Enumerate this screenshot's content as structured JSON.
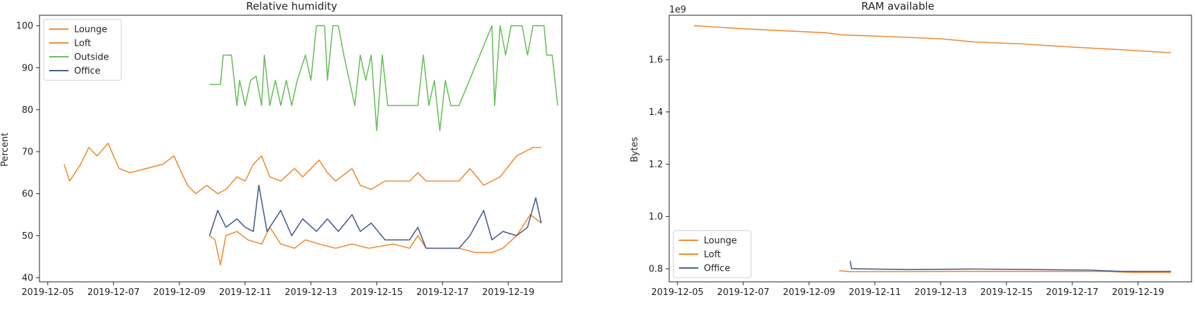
{
  "chart_data": [
    {
      "type": "line",
      "title": "Relative humidity",
      "xlabel": "",
      "ylabel": "Percent",
      "xlim": [
        "2019-12-04T18:00",
        "2019-12-20T15:00"
      ],
      "ylim": [
        39,
        102.5
      ],
      "xticks": [
        "2019-12-05",
        "2019-12-07",
        "2019-12-09",
        "2019-12-11",
        "2019-12-13",
        "2019-12-15",
        "2019-12-17",
        "2019-12-19"
      ],
      "yticks": [
        40,
        50,
        60,
        70,
        80,
        90,
        100
      ],
      "grid": false,
      "legend_position": "top-left",
      "series": [
        {
          "name": "Lounge",
          "color": "#ef8c34",
          "points": [
            [
              "2019-12-09T22:00",
              50
            ],
            [
              "2019-12-10T02:00",
              49
            ],
            [
              "2019-12-10T06:00",
              43
            ],
            [
              "2019-12-10T10:00",
              50
            ],
            [
              "2019-12-10T18:00",
              51
            ],
            [
              "2019-12-11T02:00",
              49
            ],
            [
              "2019-12-11T12:00",
              48
            ],
            [
              "2019-12-11T18:00",
              52
            ],
            [
              "2019-12-12T02:00",
              48
            ],
            [
              "2019-12-12T12:00",
              47
            ],
            [
              "2019-12-12T20:00",
              49
            ],
            [
              "2019-12-13T06:00",
              48
            ],
            [
              "2019-12-13T18:00",
              47
            ],
            [
              "2019-12-14T06:00",
              48
            ],
            [
              "2019-12-14T18:00",
              47
            ],
            [
              "2019-12-15T12:00",
              48
            ],
            [
              "2019-12-16T00:00",
              47
            ],
            [
              "2019-12-16T06:00",
              50
            ],
            [
              "2019-12-16T12:00",
              47
            ],
            [
              "2019-12-17T12:00",
              47
            ],
            [
              "2019-12-18T00:00",
              46
            ],
            [
              "2019-12-18T12:00",
              46
            ],
            [
              "2019-12-18T20:00",
              47
            ],
            [
              "2019-12-19T06:00",
              50
            ],
            [
              "2019-12-19T16:00",
              55
            ],
            [
              "2019-12-20T00:00",
              53
            ]
          ]
        },
        {
          "name": "Loft",
          "color": "#ef8c34",
          "points": [
            [
              "2019-12-05T12:00",
              67
            ],
            [
              "2019-12-05T16:00",
              63
            ],
            [
              "2019-12-06T00:00",
              67
            ],
            [
              "2019-12-06T06:00",
              71
            ],
            [
              "2019-12-06T12:00",
              69
            ],
            [
              "2019-12-06T20:00",
              72
            ],
            [
              "2019-12-07T04:00",
              66
            ],
            [
              "2019-12-07T12:00",
              65
            ],
            [
              "2019-12-08T00:00",
              66
            ],
            [
              "2019-12-08T12:00",
              67
            ],
            [
              "2019-12-08T20:00",
              69
            ],
            [
              "2019-12-09T06:00",
              62
            ],
            [
              "2019-12-09T12:00",
              60
            ],
            [
              "2019-12-09T20:00",
              62
            ],
            [
              "2019-12-10T04:00",
              60
            ],
            [
              "2019-12-10T10:00",
              61
            ],
            [
              "2019-12-10T18:00",
              64
            ],
            [
              "2019-12-11T00:00",
              63
            ],
            [
              "2019-12-11T06:00",
              67
            ],
            [
              "2019-12-11T12:00",
              69
            ],
            [
              "2019-12-11T18:00",
              64
            ],
            [
              "2019-12-12T02:00",
              63
            ],
            [
              "2019-12-12T12:00",
              66
            ],
            [
              "2019-12-12T18:00",
              64
            ],
            [
              "2019-12-13T06:00",
              68
            ],
            [
              "2019-12-13T12:00",
              65
            ],
            [
              "2019-12-13T18:00",
              63
            ],
            [
              "2019-12-14T06:00",
              66
            ],
            [
              "2019-12-14T12:00",
              62
            ],
            [
              "2019-12-14T20:00",
              61
            ],
            [
              "2019-12-15T06:00",
              63
            ],
            [
              "2019-12-16T00:00",
              63
            ],
            [
              "2019-12-16T06:00",
              65
            ],
            [
              "2019-12-16T12:00",
              63
            ],
            [
              "2019-12-17T12:00",
              63
            ],
            [
              "2019-12-17T20:00",
              66
            ],
            [
              "2019-12-18T06:00",
              62
            ],
            [
              "2019-12-18T18:00",
              64
            ],
            [
              "2019-12-19T06:00",
              69
            ],
            [
              "2019-12-19T18:00",
              71
            ],
            [
              "2019-12-20T00:00",
              71
            ]
          ]
        },
        {
          "name": "Outside",
          "color": "#6cbf5f",
          "points": [
            [
              "2019-12-09T22:00",
              86
            ],
            [
              "2019-12-10T06:00",
              86
            ],
            [
              "2019-12-10T08:00",
              93
            ],
            [
              "2019-12-10T14:00",
              93
            ],
            [
              "2019-12-10T18:00",
              81
            ],
            [
              "2019-12-10T20:00",
              87
            ],
            [
              "2019-12-11T00:00",
              81
            ],
            [
              "2019-12-11T04:00",
              87
            ],
            [
              "2019-12-11T08:00",
              88
            ],
            [
              "2019-12-11T12:00",
              81
            ],
            [
              "2019-12-11T14:00",
              93
            ],
            [
              "2019-12-11T18:00",
              81
            ],
            [
              "2019-12-11T22:00",
              87
            ],
            [
              "2019-12-12T02:00",
              81
            ],
            [
              "2019-12-12T06:00",
              87
            ],
            [
              "2019-12-12T10:00",
              81
            ],
            [
              "2019-12-12T14:00",
              87
            ],
            [
              "2019-12-12T20:00",
              93
            ],
            [
              "2019-12-13T00:00",
              87
            ],
            [
              "2019-12-13T04:00",
              100
            ],
            [
              "2019-12-13T10:00",
              100
            ],
            [
              "2019-12-13T12:00",
              87
            ],
            [
              "2019-12-13T16:00",
              100
            ],
            [
              "2019-12-13T20:00",
              100
            ],
            [
              "2019-12-14T00:00",
              93
            ],
            [
              "2019-12-14T04:00",
              87
            ],
            [
              "2019-12-14T08:00",
              81
            ],
            [
              "2019-12-14T12:00",
              93
            ],
            [
              "2019-12-14T16:00",
              87
            ],
            [
              "2019-12-14T20:00",
              93
            ],
            [
              "2019-12-15T00:00",
              75
            ],
            [
              "2019-12-15T04:00",
              93
            ],
            [
              "2019-12-15T08:00",
              81
            ],
            [
              "2019-12-15T20:00",
              81
            ],
            [
              "2019-12-16T00:00",
              81
            ],
            [
              "2019-12-16T06:00",
              81
            ],
            [
              "2019-12-16T10:00",
              93
            ],
            [
              "2019-12-16T14:00",
              81
            ],
            [
              "2019-12-16T18:00",
              87
            ],
            [
              "2019-12-16T22:00",
              75
            ],
            [
              "2019-12-17T02:00",
              87
            ],
            [
              "2019-12-17T06:00",
              81
            ],
            [
              "2019-12-17T12:00",
              81
            ],
            [
              "2019-12-18T12:00",
              100
            ],
            [
              "2019-12-18T14:00",
              81
            ],
            [
              "2019-12-18T18:00",
              100
            ],
            [
              "2019-12-18T22:00",
              93
            ],
            [
              "2019-12-19T02:00",
              100
            ],
            [
              "2019-12-19T10:00",
              100
            ],
            [
              "2019-12-19T14:00",
              93
            ],
            [
              "2019-12-19T18:00",
              100
            ],
            [
              "2019-12-20T02:00",
              100
            ],
            [
              "2019-12-20T04:00",
              93
            ],
            [
              "2019-12-20T08:00",
              93
            ],
            [
              "2019-12-20T12:00",
              81
            ]
          ]
        },
        {
          "name": "Office",
          "color": "#4a5d8c",
          "points": [
            [
              "2019-12-09T22:00",
              50
            ],
            [
              "2019-12-10T04:00",
              56
            ],
            [
              "2019-12-10T10:00",
              52
            ],
            [
              "2019-12-10T18:00",
              54
            ],
            [
              "2019-12-11T00:00",
              52
            ],
            [
              "2019-12-11T06:00",
              51
            ],
            [
              "2019-12-11T10:00",
              62
            ],
            [
              "2019-12-11T16:00",
              51
            ],
            [
              "2019-12-12T02:00",
              56
            ],
            [
              "2019-12-12T10:00",
              50
            ],
            [
              "2019-12-12T18:00",
              54
            ],
            [
              "2019-12-13T04:00",
              51
            ],
            [
              "2019-12-13T12:00",
              54
            ],
            [
              "2019-12-13T20:00",
              51
            ],
            [
              "2019-12-14T06:00",
              55
            ],
            [
              "2019-12-14T12:00",
              51
            ],
            [
              "2019-12-14T20:00",
              53
            ],
            [
              "2019-12-15T06:00",
              49
            ],
            [
              "2019-12-16T00:00",
              49
            ],
            [
              "2019-12-16T06:00",
              52
            ],
            [
              "2019-12-16T12:00",
              47
            ],
            [
              "2019-12-17T12:00",
              47
            ],
            [
              "2019-12-17T20:00",
              50
            ],
            [
              "2019-12-18T06:00",
              56
            ],
            [
              "2019-12-18T12:00",
              49
            ],
            [
              "2019-12-18T20:00",
              51
            ],
            [
              "2019-12-19T06:00",
              50
            ],
            [
              "2019-12-19T14:00",
              52
            ],
            [
              "2019-12-19T20:00",
              59
            ],
            [
              "2019-12-20T00:00",
              53
            ]
          ]
        }
      ]
    },
    {
      "type": "line",
      "title": "RAM available",
      "xlabel": "",
      "ylabel": "Bytes",
      "offset_text": "1e9",
      "xlim": [
        "2019-12-04T18:00",
        "2019-12-20T15:00"
      ],
      "ylim": [
        0.75,
        1.77
      ],
      "xticks": [
        "2019-12-05",
        "2019-12-07",
        "2019-12-09",
        "2019-12-11",
        "2019-12-13",
        "2019-12-15",
        "2019-12-17",
        "2019-12-19"
      ],
      "yticks": [
        0.8,
        1.0,
        1.2,
        1.4,
        1.6
      ],
      "grid": false,
      "legend_position": "bottom-left",
      "series": [
        {
          "name": "Lounge",
          "color": "#ef8c34",
          "points": [
            [
              "2019-12-05T12:00",
              1.73
            ],
            [
              "2019-12-07T00:00",
              1.718
            ],
            [
              "2019-12-09T12:00",
              1.703
            ],
            [
              "2019-12-10T00:00",
              1.695
            ],
            [
              "2019-12-11T12:00",
              1.688
            ],
            [
              "2019-12-13T00:00",
              1.68
            ],
            [
              "2019-12-14T00:00",
              1.668
            ],
            [
              "2019-12-15T12:00",
              1.66
            ],
            [
              "2019-12-17T00:00",
              1.648
            ],
            [
              "2019-12-18T12:00",
              1.638
            ],
            [
              "2019-12-19T12:00",
              1.63
            ],
            [
              "2019-12-20T00:00",
              1.627
            ]
          ]
        },
        {
          "name": "Loft",
          "color": "#ef8c34",
          "points": [
            [
              "2019-12-09T22:00",
              0.793
            ],
            [
              "2019-12-10T06:00",
              0.789
            ],
            [
              "2019-12-12T00:00",
              0.789
            ],
            [
              "2019-12-14T00:00",
              0.79
            ],
            [
              "2019-12-16T00:00",
              0.79
            ],
            [
              "2019-12-18T00:00",
              0.79
            ],
            [
              "2019-12-18T20:00",
              0.786
            ],
            [
              "2019-12-20T00:00",
              0.786
            ]
          ]
        },
        {
          "name": "Office",
          "color": "#4a5d8c",
          "points": [
            [
              "2019-12-10T06:00",
              0.83
            ],
            [
              "2019-12-10T07:00",
              0.8
            ],
            [
              "2019-12-12T00:00",
              0.797
            ],
            [
              "2019-12-14T00:00",
              0.799
            ],
            [
              "2019-12-16T00:00",
              0.797
            ],
            [
              "2019-12-17T12:00",
              0.795
            ],
            [
              "2019-12-18T12:00",
              0.79
            ],
            [
              "2019-12-20T00:00",
              0.79
            ]
          ]
        }
      ]
    }
  ]
}
